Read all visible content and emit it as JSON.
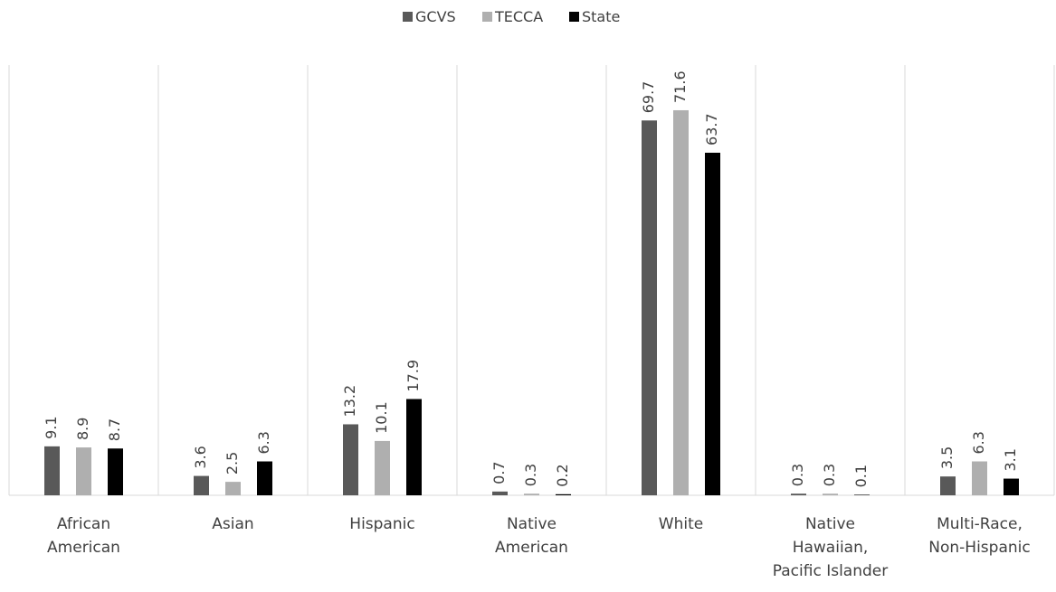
{
  "chart_data": {
    "type": "bar",
    "categories": [
      "African\nAmerican",
      "Asian",
      "Hispanic",
      "Native\nAmerican",
      "White",
      "Native\nHawaiian,\nPacific Islander",
      "Multi-Race,\nNon-Hispanic"
    ],
    "series": [
      {
        "name": "GCVS",
        "color": "#595959",
        "values": [
          9.1,
          3.6,
          13.2,
          0.7,
          69.7,
          0.3,
          3.5
        ]
      },
      {
        "name": "TECCA",
        "color": "#afafaf",
        "values": [
          8.9,
          2.5,
          10.1,
          0.3,
          71.6,
          0.3,
          6.3
        ]
      },
      {
        "name": "State",
        "color": "#000000",
        "values": [
          8.7,
          6.3,
          17.9,
          0.2,
          63.7,
          0.1,
          3.1
        ]
      }
    ],
    "ylim": [
      0,
      80
    ],
    "legend": "top"
  }
}
